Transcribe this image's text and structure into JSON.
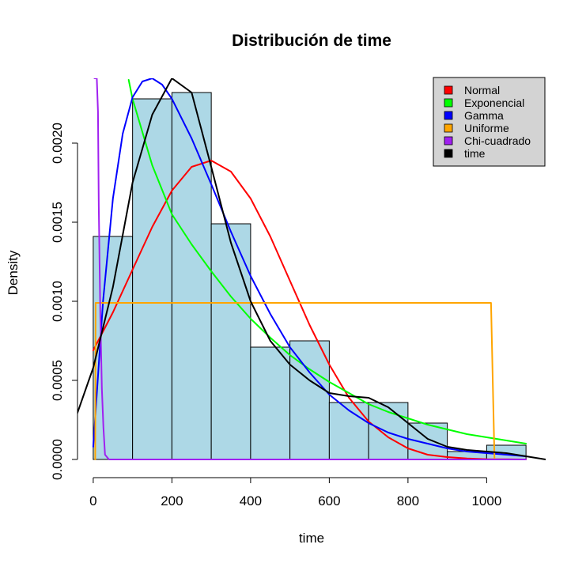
{
  "chart_data": {
    "type": "histogram",
    "title": "Distribución de time",
    "xlabel": "time",
    "ylabel": "Density",
    "xlim": [
      -40,
      1150
    ],
    "ylim": [
      -4.5e-05,
      0.00241
    ],
    "x_ticks": [
      0,
      200,
      400,
      600,
      800,
      1000
    ],
    "y_ticks": [
      0.0,
      0.0005,
      0.001,
      0.0015,
      0.002
    ],
    "x_tick_labels": [
      "0",
      "200",
      "400",
      "600",
      "800",
      "1000"
    ],
    "y_tick_labels": [
      "0.0000",
      "0.0005",
      "0.0010",
      "0.0015",
      "0.0020"
    ],
    "histogram": {
      "fill": "#add8e6",
      "stroke": "#000000",
      "bins": [
        {
          "x0": 0,
          "x1": 100,
          "density": 0.00141
        },
        {
          "x0": 100,
          "x1": 200,
          "density": 0.00228
        },
        {
          "x0": 200,
          "x1": 300,
          "density": 0.00232
        },
        {
          "x0": 300,
          "x1": 400,
          "density": 0.00149
        },
        {
          "x0": 400,
          "x1": 500,
          "density": 0.00071
        },
        {
          "x0": 500,
          "x1": 600,
          "density": 0.00075
        },
        {
          "x0": 600,
          "x1": 700,
          "density": 0.00036
        },
        {
          "x0": 700,
          "x1": 800,
          "density": 0.00036
        },
        {
          "x0": 800,
          "x1": 900,
          "density": 0.00023
        },
        {
          "x0": 900,
          "x1": 1000,
          "density": 5e-05
        },
        {
          "x0": 1000,
          "x1": 1100,
          "density": 9e-05
        }
      ]
    },
    "series": [
      {
        "name": "Normal",
        "color": "#ff0000",
        "x": [
          0,
          50,
          100,
          150,
          200,
          250,
          300,
          350,
          400,
          450,
          500,
          550,
          600,
          650,
          700,
          750,
          800,
          850,
          900,
          950,
          1000,
          1050,
          1100
        ],
        "y": [
          0.00069,
          0.00093,
          0.0012,
          0.00147,
          0.0017,
          0.00185,
          0.00189,
          0.00182,
          0.00165,
          0.00141,
          0.00113,
          0.00085,
          0.0006,
          0.00039,
          0.00024,
          0.00014,
          7e-05,
          3e-05,
          1.5e-05,
          6e-06,
          2e-06,
          1e-06,
          0.0
        ]
      },
      {
        "name": "Exponencial",
        "color": "#00ff00",
        "x": [
          90,
          100,
          150,
          200,
          250,
          300,
          350,
          400,
          450,
          500,
          550,
          600,
          650,
          700,
          750,
          800,
          850,
          900,
          950,
          1000,
          1050,
          1100
        ],
        "y": [
          0.0024,
          0.00228,
          0.00186,
          0.00155,
          0.00136,
          0.00119,
          0.00103,
          0.00089,
          0.00077,
          0.00066,
          0.00057,
          0.00049,
          0.00042,
          0.00035,
          0.0003,
          0.00026,
          0.00022,
          0.00019,
          0.00016,
          0.00014,
          0.00012,
          0.0001
        ]
      },
      {
        "name": "Gamma",
        "color": "#0000ff",
        "x": [
          0,
          25,
          50,
          75,
          100,
          125,
          150,
          175,
          200,
          250,
          300,
          350,
          400,
          450,
          500,
          550,
          600,
          650,
          700,
          750,
          800,
          850,
          900,
          950,
          1000,
          1050,
          1100
        ],
        "y": [
          8e-05,
          0.001,
          0.00165,
          0.00206,
          0.00229,
          0.00239,
          0.00241,
          0.00237,
          0.00228,
          0.00203,
          0.00174,
          0.00144,
          0.00116,
          0.00092,
          0.00071,
          0.00055,
          0.00041,
          0.00031,
          0.00023,
          0.00017,
          0.00013,
          0.0001,
          7e-05,
          5e-05,
          4e-05,
          3e-05,
          2e-05
        ]
      },
      {
        "name": "Uniforme",
        "color": "#ffa500",
        "x": [
          5,
          6,
          1010,
          1011,
          1020,
          1100
        ],
        "y": [
          0.0,
          0.00099,
          0.00099,
          0.00099,
          0.0,
          0.0
        ]
      },
      {
        "name": "Chi-cuadrado",
        "color": "#a020f0",
        "x": [
          3,
          6,
          9,
          12,
          14,
          18,
          22,
          26,
          30,
          40,
          1100
        ],
        "y": [
          0.00241,
          0.00241,
          0.00241,
          0.0022,
          0.0016,
          0.0009,
          0.00045,
          0.0002,
          3e-05,
          0.0,
          0.0
        ]
      },
      {
        "name": "time",
        "color": "#000000",
        "x": [
          -45,
          0,
          50,
          100,
          150,
          200,
          250,
          300,
          350,
          400,
          450,
          500,
          550,
          600,
          650,
          700,
          750,
          800,
          850,
          900,
          950,
          1000,
          1050,
          1100,
          1150
        ],
        "y": [
          0.00026,
          0.00058,
          0.00109,
          0.00175,
          0.00218,
          0.00241,
          0.00232,
          0.00185,
          0.00137,
          0.001,
          0.00075,
          0.0006,
          0.0005,
          0.00042,
          0.0004,
          0.00039,
          0.00033,
          0.00023,
          0.00013,
          8e-05,
          6e-05,
          5e-05,
          4e-05,
          2e-05,
          0.0
        ]
      }
    ],
    "legend_position": "top-right",
    "legend_background": "#d3d3d3"
  }
}
